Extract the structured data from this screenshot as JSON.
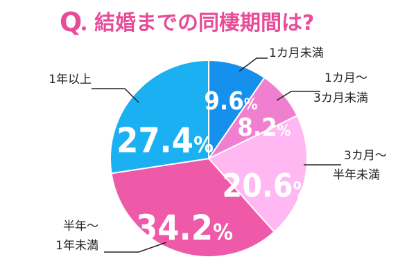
{
  "title": {
    "q": "Q",
    "text": "結婚までの同棲期間は?"
  },
  "chart_data": {
    "type": "pie",
    "title": "結婚までの同棲期間は?",
    "slices": [
      {
        "label": "1カ月未満",
        "value": 9.6,
        "display": "9.6%",
        "color": "#1590ec"
      },
      {
        "label": "1カ月〜\n3カ月未満",
        "value": 8.2,
        "display": "8.2%",
        "color": "#f17fd0"
      },
      {
        "label": "3カ月〜\n半年未満",
        "value": 20.6,
        "display": "20.6%",
        "color": "#ffb8f2"
      },
      {
        "label": "半年〜\n1年未満",
        "value": 34.2,
        "display": "34.2%",
        "color": "#ee59a8"
      },
      {
        "label": "1年以上",
        "value": 27.4,
        "display": "27.4%",
        "color": "#1ab0f2"
      }
    ],
    "start_angle": "12 o'clock",
    "direction": "clockwise"
  }
}
